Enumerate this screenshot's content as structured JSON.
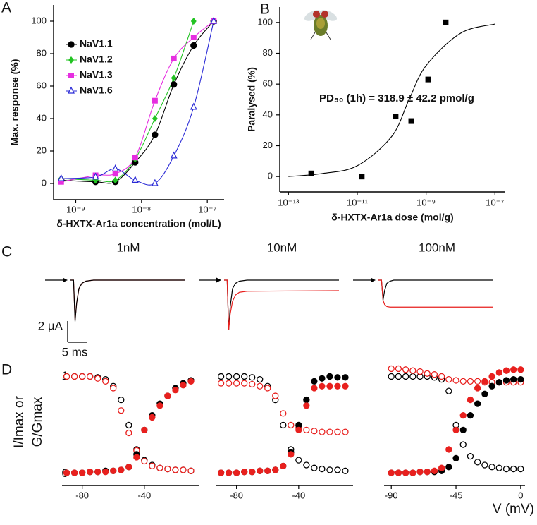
{
  "chart_data": [
    {
      "type": "line",
      "panel": "A",
      "y_label": "Max. response (%)",
      "x_label": "δ-HXTX-Ar1a concentration (mol/L)",
      "log_x": true,
      "xlim": [
        4.6e-10,
        1.8e-07
      ],
      "ylim": [
        -10,
        110
      ],
      "xticks": [
        {
          "value": 1e-09,
          "label": "10⁻⁹"
        },
        {
          "value": 1e-08,
          "label": "10⁻⁸"
        },
        {
          "value": 1e-07,
          "label": "10⁻⁷"
        }
      ],
      "yticks": [
        0,
        20,
        40,
        60,
        80,
        100
      ],
      "legend": "upper left",
      "x": [
        6e-10,
        2e-09,
        4e-09,
        8e-09,
        1.6e-08,
        3.1e-08,
        6.2e-08,
        1.25e-07
      ],
      "series": [
        {
          "name": "NaV1.1",
          "color": "#000000",
          "marker": "circle",
          "values": [
            2,
            1,
            1,
            13,
            30,
            61,
            85,
            100
          ]
        },
        {
          "name": "NaV1.2",
          "color": "#22c322",
          "marker": "diamond",
          "values": [
            3,
            2,
            2,
            15,
            40,
            65,
            100,
            null
          ]
        },
        {
          "name": "NaV1.3",
          "color": "#e62ee0",
          "marker": "square",
          "values": [
            1,
            5,
            6,
            16,
            51,
            77,
            90,
            100
          ]
        },
        {
          "name": "NaV1.6",
          "color": "#2a2ad6",
          "marker": "triangle-open",
          "values": [
            3,
            4,
            9,
            2,
            0,
            17,
            47,
            100
          ]
        }
      ]
    },
    {
      "type": "scatter",
      "panel": "B",
      "y_label": "Paralysed (%)",
      "x_label": "δ-HXTX-Ar1a dose (mol/g)",
      "log_x": true,
      "xlim": [
        5.6e-14,
        2e-07
      ],
      "ylim": [
        -10,
        110
      ],
      "xticks": [
        {
          "value": 1e-13,
          "label": "10⁻¹³"
        },
        {
          "value": 1e-11,
          "label": "10⁻¹¹"
        },
        {
          "value": 1e-09,
          "label": "10⁻⁹"
        },
        {
          "value": 1e-07,
          "label": "10⁻⁷"
        }
      ],
      "yticks": [
        0,
        20,
        40,
        60,
        80,
        100
      ],
      "annotation": "PD₅₀ (1h) = 318.9 ± 42.2 pmol/g",
      "x": [
        4.6e-13,
        1.35e-11,
        1.3e-10,
        3.7e-10,
        1.15e-09,
        3.7e-09
      ],
      "series": [
        {
          "color": "#000000",
          "marker": "square",
          "values": [
            2,
            0,
            39,
            36,
            63,
            100
          ]
        }
      ],
      "fit": {
        "x": [
          1e-13,
          1e-12,
          1e-11,
          1e-10,
          3.2e-10,
          1e-09,
          1e-08,
          1e-07
        ],
        "values": [
          0,
          2,
          7,
          26,
          50,
          72,
          93,
          99
        ]
      }
    },
    {
      "type": "trace",
      "panel": "C",
      "title": "1nM",
      "xlim": [
        0,
        30
      ],
      "ylim": [
        -5,
        1
      ],
      "scale_bar": {
        "y": 2,
        "y_label": "2 µA",
        "x": 5,
        "x_label": "5 ms"
      },
      "x": [
        0,
        0.8,
        1.2,
        1.6,
        2.2,
        3,
        4,
        6,
        30
      ],
      "series": [
        {
          "color": "#e8201e",
          "values": [
            0,
            0,
            -3.8,
            -2.2,
            -0.8,
            -0.3,
            -0.1,
            0,
            0
          ]
        },
        {
          "color": "#000000",
          "values": [
            0,
            0,
            -3.9,
            -2.2,
            -0.8,
            -0.3,
            -0.1,
            0,
            0
          ]
        }
      ]
    },
    {
      "type": "trace",
      "title": "10nM",
      "xlim": [
        0,
        30
      ],
      "ylim": [
        -5,
        1
      ],
      "x": [
        0,
        0.8,
        1.2,
        1.6,
        2.2,
        3,
        4,
        6,
        30
      ],
      "series": [
        {
          "color": "#000000",
          "values": [
            0,
            0,
            -4.7,
            -2.5,
            -0.8,
            -0.3,
            -0.1,
            0,
            0
          ]
        },
        {
          "color": "#e8201e",
          "values": [
            0,
            0,
            -4.7,
            -3.2,
            -2.0,
            -1.4,
            -1.15,
            -1.05,
            -1.0
          ]
        }
      ]
    },
    {
      "type": "trace",
      "title": "100nM",
      "xlim": [
        0,
        30
      ],
      "ylim": [
        -5,
        1
      ],
      "x": [
        0,
        0.8,
        1.2,
        1.6,
        2.2,
        3,
        4,
        6,
        30
      ],
      "series": [
        {
          "color": "#000000",
          "values": [
            0,
            0,
            -1.9,
            -1.0,
            -0.3,
            -0.1,
            0,
            0,
            0
          ]
        },
        {
          "color": "#e8201e",
          "values": [
            0,
            0,
            -1.9,
            -2.3,
            -2.5,
            -2.55,
            -2.55,
            -2.55,
            -2.55
          ]
        }
      ]
    },
    {
      "type": "scatter",
      "panel": "D",
      "y_label": [
        "I/Imax or",
        "G/Gmax"
      ],
      "xlim": [
        -93,
        -5
      ],
      "ylim": [
        -0.12,
        1.17
      ],
      "xticks": [
        -80,
        -40
      ],
      "yticks": [
        0,
        1
      ],
      "x": [
        -90,
        -85,
        -80,
        -75,
        -70,
        -65,
        -60,
        -55,
        -50,
        -45,
        -40,
        -35,
        -30,
        -25,
        -20,
        -15,
        -10
      ],
      "series": [
        {
          "color": "#000000",
          "marker": "circle-open",
          "values": [
            1,
            1,
            1,
            1,
            0.99,
            0.97,
            0.9,
            0.76,
            0.5,
            0.25,
            0.14,
            0.09,
            0.06,
            0.05,
            0.04,
            0.04,
            0.03
          ]
        },
        {
          "color": "#e8201e",
          "marker": "circle-open",
          "values": [
            1,
            1,
            1,
            1,
            0.98,
            0.95,
            0.88,
            0.65,
            0.42,
            0.24,
            0.13,
            0.08,
            0.06,
            0.05,
            0.04,
            0.04,
            0.03
          ]
        },
        {
          "color": "#000000",
          "marker": "circle",
          "values": [
            0.01,
            0.01,
            0.01,
            0.02,
            0.02,
            0.03,
            0.03,
            0.04,
            0.07,
            0.2,
            0.45,
            0.6,
            0.72,
            0.8,
            0.88,
            0.93,
            0.96
          ]
        },
        {
          "color": "#e8201e",
          "marker": "circle",
          "values": [
            0.01,
            0.01,
            0.01,
            0.02,
            0.02,
            0.02,
            0.03,
            0.04,
            0.07,
            0.17,
            0.45,
            0.58,
            0.7,
            0.8,
            0.86,
            0.91,
            0.95
          ]
        }
      ]
    },
    {
      "type": "scatter",
      "xlim": [
        -93,
        -5
      ],
      "ylim": [
        -0.12,
        1.17
      ],
      "xticks": [
        -80,
        -40
      ],
      "x": [
        -90,
        -85,
        -80,
        -75,
        -70,
        -65,
        -60,
        -55,
        -50,
        -45,
        -40,
        -35,
        -30,
        -25,
        -20,
        -15,
        -10
      ],
      "series": [
        {
          "color": "#000000",
          "marker": "circle-open",
          "values": [
            1,
            1,
            1,
            1,
            0.99,
            0.97,
            0.9,
            0.76,
            0.5,
            0.25,
            0.14,
            0.09,
            0.06,
            0.05,
            0.04,
            0.04,
            0.03
          ]
        },
        {
          "color": "#e8201e",
          "marker": "circle-open",
          "values": [
            0.93,
            0.93,
            0.93,
            0.93,
            0.92,
            0.9,
            0.88,
            0.8,
            0.62,
            0.5,
            0.47,
            0.45,
            0.44,
            0.43,
            0.43,
            0.43,
            0.43
          ]
        },
        {
          "color": "#000000",
          "marker": "circle",
          "values": [
            0.01,
            0.01,
            0.01,
            0.02,
            0.02,
            0.03,
            0.03,
            0.04,
            0.08,
            0.22,
            0.5,
            0.76,
            0.95,
            0.98,
            1.0,
            0.99,
            0.99
          ]
        },
        {
          "color": "#e8201e",
          "marker": "circle",
          "values": [
            0.01,
            0.01,
            0.01,
            0.02,
            0.02,
            0.03,
            0.03,
            0.04,
            0.08,
            0.2,
            0.45,
            0.7,
            0.88,
            0.9,
            0.9,
            0.9,
            0.9
          ]
        }
      ]
    },
    {
      "type": "scatter",
      "x_label": "V (mV)",
      "xlim": [
        -95,
        3
      ],
      "ylim": [
        -0.12,
        1.17
      ],
      "xticks": [
        -90,
        -45,
        0
      ],
      "x": [
        -90,
        -85,
        -80,
        -75,
        -70,
        -65,
        -60,
        -55,
        -50,
        -45,
        -40,
        -35,
        -30,
        -25,
        -20,
        -15,
        -10,
        -5,
        0
      ],
      "series": [
        {
          "color": "#000000",
          "marker": "circle-open",
          "values": [
            1,
            1,
            1,
            1,
            1,
            1,
            0.99,
            0.97,
            0.85,
            0.5,
            0.3,
            0.18,
            0.12,
            0.09,
            0.07,
            0.06,
            0.05,
            0.05,
            0.05
          ]
        },
        {
          "color": "#e8201e",
          "marker": "circle-open",
          "values": [
            1.08,
            1.08,
            1.07,
            1.06,
            1.05,
            1.03,
            1.02,
            1.0,
            0.97,
            0.96,
            0.95,
            0.95,
            0.95,
            0.94,
            0.94,
            0.94,
            0.94,
            0.94,
            0.94
          ]
        },
        {
          "color": "#000000",
          "marker": "circle",
          "values": [
            0.01,
            0.01,
            0.01,
            0.01,
            0.02,
            0.02,
            0.02,
            0.03,
            0.07,
            0.16,
            0.45,
            0.6,
            0.72,
            0.82,
            0.9,
            0.94,
            0.96,
            0.97,
            0.97
          ]
        },
        {
          "color": "#e8201e",
          "marker": "circle",
          "values": [
            0.01,
            0.01,
            0.01,
            0.01,
            0.02,
            0.02,
            0.03,
            0.06,
            0.25,
            0.45,
            0.6,
            0.76,
            0.88,
            0.95,
            1.0,
            1.04,
            1.06,
            1.07,
            1.07
          ]
        }
      ]
    }
  ]
}
